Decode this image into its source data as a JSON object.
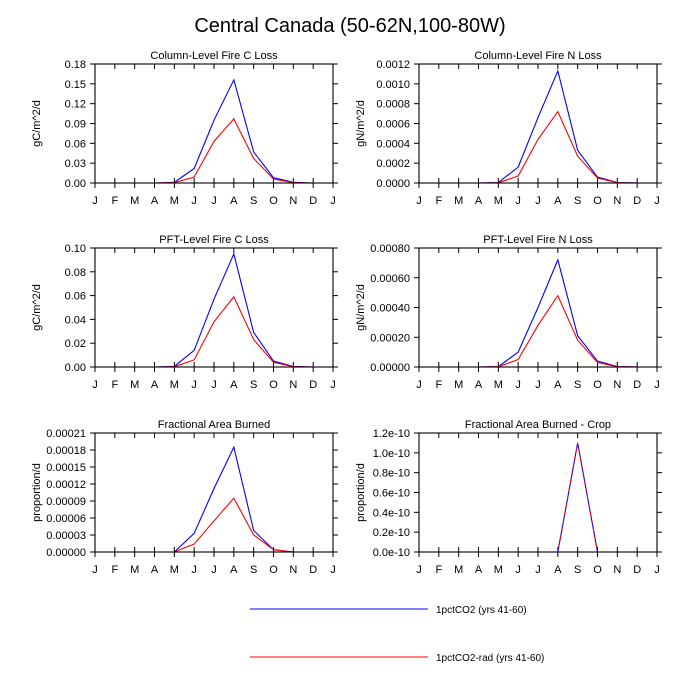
{
  "figure": {
    "title": "Central Canada (50-62N,100-80W)"
  },
  "colors": {
    "series_1": "#0000ff",
    "series_2": "#ff0000"
  },
  "legend": {
    "placement": "bottom-center",
    "entries": [
      "1pctCO2 (yrs 41-60)",
      "1pctCO2-rad (yrs 41-60)"
    ]
  },
  "chart_data": [
    {
      "type": "line",
      "title": "Column-Level Fire C Loss",
      "xlabel": "",
      "ylabel": "gC/m^2/d",
      "categories": [
        "J",
        "F",
        "M",
        "A",
        "M",
        "J",
        "J",
        "A",
        "S",
        "O",
        "N",
        "D",
        "J"
      ],
      "ylim": [
        0,
        0.18
      ],
      "yticks": [
        0,
        0.03,
        0.06,
        0.09,
        0.12,
        0.15,
        0.18
      ],
      "ytick_labels": [
        "0.00",
        "0.03",
        "0.06",
        "0.09",
        "0.12",
        "0.15",
        "0.18"
      ],
      "grid": false,
      "series": [
        {
          "name": "1pctCO2 (yrs 41-60)",
          "values": [
            0,
            0,
            0,
            0,
            0.001,
            0.022,
            0.095,
            0.156,
            0.047,
            0.008,
            0.001,
            0,
            0
          ]
        },
        {
          "name": "1pctCO2-rad (yrs 41-60)",
          "values": [
            0,
            0,
            0,
            0,
            0.0005,
            0.009,
            0.063,
            0.097,
            0.037,
            0.006,
            0.0005,
            0,
            0
          ]
        }
      ]
    },
    {
      "type": "line",
      "title": "Column-Level Fire N Loss",
      "xlabel": "",
      "ylabel": "gN/m^2/d",
      "categories": [
        "J",
        "F",
        "M",
        "A",
        "M",
        "J",
        "J",
        "A",
        "S",
        "O",
        "N",
        "D",
        "J"
      ],
      "ylim": [
        0,
        0.0012
      ],
      "yticks": [
        0,
        0.0002,
        0.0004,
        0.0006,
        0.0008,
        0.001,
        0.0012
      ],
      "ytick_labels": [
        "0.0000",
        "0.0002",
        "0.0004",
        "0.0006",
        "0.0008",
        "0.0010",
        "0.0012"
      ],
      "grid": false,
      "series": [
        {
          "name": "1pctCO2 (yrs 41-60)",
          "values": [
            0,
            0,
            0,
            0,
            5e-06,
            0.00016,
            0.00066,
            0.00113,
            0.00033,
            6e-05,
            5e-06,
            0,
            0
          ]
        },
        {
          "name": "1pctCO2-rad (yrs 41-60)",
          "values": [
            0,
            0,
            0,
            0,
            3e-06,
            7e-05,
            0.00044,
            0.00072,
            0.00027,
            5e-05,
            3e-06,
            0,
            0
          ]
        }
      ]
    },
    {
      "type": "line",
      "title": "PFT-Level Fire C Loss",
      "xlabel": "",
      "ylabel": "gC/m^2/d",
      "categories": [
        "J",
        "F",
        "M",
        "A",
        "M",
        "J",
        "J",
        "A",
        "S",
        "O",
        "N",
        "D",
        "J"
      ],
      "ylim": [
        0,
        0.1
      ],
      "yticks": [
        0,
        0.02,
        0.04,
        0.06,
        0.08,
        0.1
      ],
      "ytick_labels": [
        "0.00",
        "0.02",
        "0.04",
        "0.06",
        "0.08",
        "0.10"
      ],
      "grid": false,
      "series": [
        {
          "name": "1pctCO2 (yrs 41-60)",
          "values": [
            0,
            0,
            0,
            0,
            0.0005,
            0.014,
            0.057,
            0.095,
            0.029,
            0.005,
            0.0005,
            0,
            0
          ]
        },
        {
          "name": "1pctCO2-rad (yrs 41-60)",
          "values": [
            0,
            0,
            0,
            0,
            0.0003,
            0.006,
            0.038,
            0.059,
            0.023,
            0.004,
            0.0003,
            0,
            0
          ]
        }
      ]
    },
    {
      "type": "line",
      "title": "PFT-Level Fire N Loss",
      "xlabel": "",
      "ylabel": "gN/m^2/d",
      "categories": [
        "J",
        "F",
        "M",
        "A",
        "M",
        "J",
        "J",
        "A",
        "S",
        "O",
        "N",
        "D",
        "J"
      ],
      "ylim": [
        0,
        0.0008
      ],
      "yticks": [
        0,
        0.0002,
        0.0004,
        0.0006,
        0.0008
      ],
      "ytick_labels": [
        "0.00000",
        "0.00020",
        "0.00040",
        "0.00060",
        "0.00080"
      ],
      "grid": false,
      "series": [
        {
          "name": "1pctCO2 (yrs 41-60)",
          "values": [
            0,
            0,
            0,
            0,
            3e-06,
            0.0001,
            0.0004,
            0.00072,
            0.00021,
            4e-05,
            3e-06,
            0,
            0
          ]
        },
        {
          "name": "1pctCO2-rad (yrs 41-60)",
          "values": [
            0,
            0,
            0,
            0,
            2e-06,
            5e-05,
            0.00028,
            0.00048,
            0.00018,
            3e-05,
            2e-06,
            0,
            0
          ]
        }
      ]
    },
    {
      "type": "line",
      "title": "Fractional Area Burned",
      "xlabel": "",
      "ylabel": "proportion/d",
      "categories": [
        "J",
        "F",
        "M",
        "A",
        "M",
        "J",
        "J",
        "A",
        "S",
        "O",
        "N",
        "D",
        "J"
      ],
      "ylim": [
        0,
        0.00021
      ],
      "yticks": [
        0,
        3e-05,
        6e-05,
        9e-05,
        0.00012,
        0.00015,
        0.00018,
        0.00021
      ],
      "ytick_labels": [
        "0.00000",
        "0.00003",
        "0.00006",
        "0.00009",
        "0.00012",
        "0.00015",
        "0.00018",
        "0.00021"
      ],
      "grid": false,
      "series": [
        {
          "name": "1pctCO2 (yrs 41-60)",
          "values": [
            0,
            0,
            0,
            0,
            0,
            3.3e-05,
            0.000112,
            0.000185,
            3.8e-05,
            4e-06,
            0,
            0,
            0
          ]
        },
        {
          "name": "1pctCO2-rad (yrs 41-60)",
          "values": [
            0,
            0,
            0,
            0,
            0,
            1.4e-05,
            5.5e-05,
            9.5e-05,
            3e-05,
            4e-06,
            0,
            0,
            0
          ]
        }
      ]
    },
    {
      "type": "line",
      "title": "Fractional Area Burned - Crop",
      "xlabel": "",
      "ylabel": "proportion/d",
      "categories": [
        "J",
        "F",
        "M",
        "A",
        "M",
        "J",
        "J",
        "A",
        "S",
        "O",
        "N",
        "D",
        "J"
      ],
      "ylim": [
        0,
        1.2e-10
      ],
      "yticks": [
        0,
        2e-11,
        4e-11,
        6e-11,
        8e-11,
        1e-10,
        1.2e-10
      ],
      "ytick_labels": [
        "0.0e-10",
        "0.2e-10",
        "0.4e-10",
        "0.6e-10",
        "0.8e-10",
        "1.0e-10",
        "1.2e-10"
      ],
      "grid": false,
      "series": [
        {
          "name": "1pctCO2 (yrs 41-60)",
          "values": [
            0,
            0,
            0,
            0,
            0,
            0,
            0,
            0,
            1.1e-10,
            0,
            0,
            0,
            0
          ]
        },
        {
          "name": "1pctCO2-rad (yrs 41-60)",
          "values": [
            0,
            0,
            0,
            0,
            0,
            0,
            0,
            0,
            1.1e-10,
            0,
            0,
            0,
            0
          ]
        }
      ]
    }
  ]
}
